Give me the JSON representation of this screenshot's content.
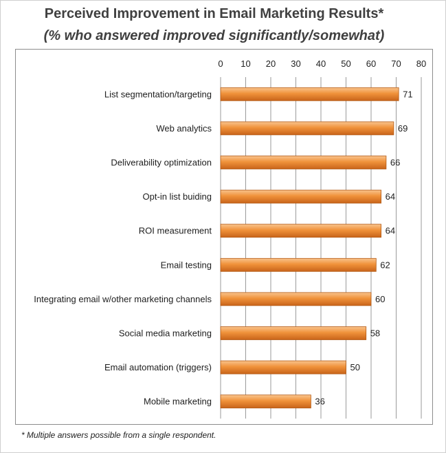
{
  "chart_data": {
    "type": "bar",
    "orientation": "horizontal",
    "title": "Perceived Improvement in Email Marketing Results*",
    "subtitle": "(% who answered improved significantly/somewhat)",
    "categories": [
      "List segmentation/targeting",
      "Web analytics",
      "Deliverability optimization",
      "Opt-in list buiding",
      "ROI measurement",
      "Email testing",
      "Integrating email w/other marketing channels",
      "Social media marketing",
      "Email automation (triggers)",
      "Mobile marketing"
    ],
    "values": [
      71,
      69,
      66,
      64,
      64,
      62,
      60,
      58,
      50,
      36
    ],
    "xlim": [
      0,
      80
    ],
    "xticks": [
      0,
      10,
      20,
      30,
      40,
      50,
      60,
      70,
      80
    ],
    "xaxis_position": "top",
    "grid": true,
    "legend": "none",
    "bar_color": "#f0923a",
    "footnote": "* Multiple answers possible from a single respondent."
  }
}
